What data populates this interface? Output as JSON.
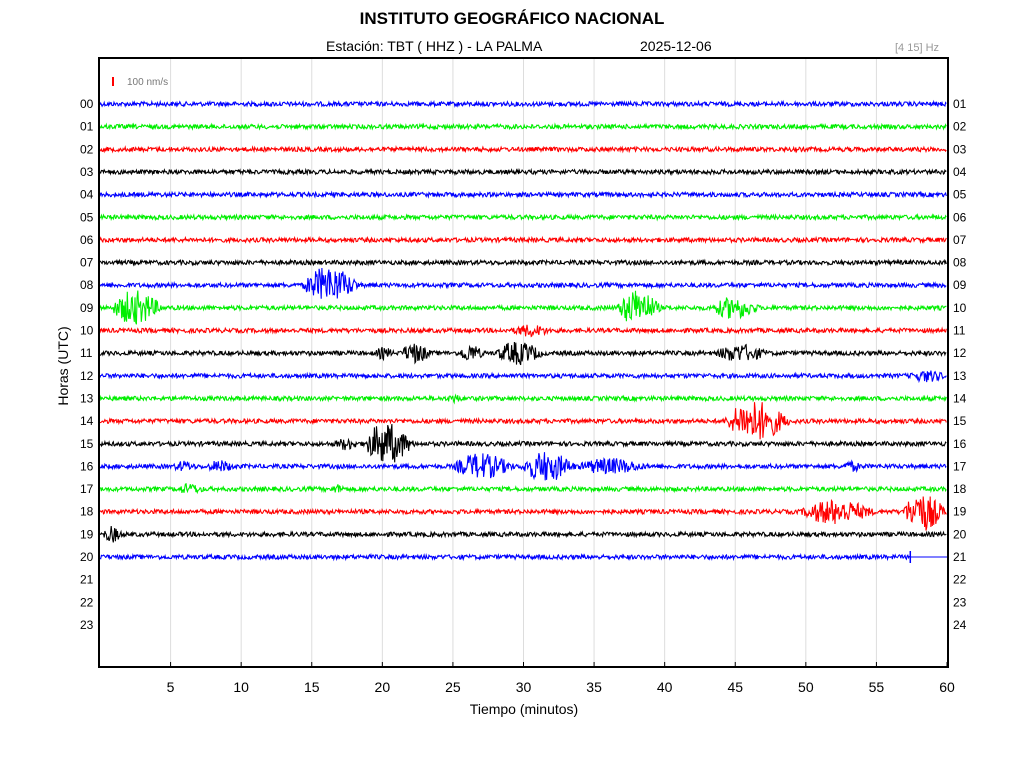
{
  "header": {
    "title": "INSTITUTO GEOGRÁFICO NACIONAL",
    "station": "Estación:  TBT ( HHZ ) - LA PALMA",
    "date": "2025-12-06",
    "filter": "[4 15] Hz"
  },
  "colors": {
    "blue": "#0000ff",
    "green": "#00ee00",
    "red": "#ff0000",
    "black": "#000000",
    "grid": "#dddddd"
  },
  "chart_data": {
    "type": "line",
    "title": "INSTITUTO GEOGRÁFICO NACIONAL",
    "xlabel": "Tiempo (minutos)",
    "ylabel": "Horas (UTC)",
    "xlim": [
      0,
      60
    ],
    "x_ticks": [
      "5",
      "10",
      "15",
      "20",
      "25",
      "30",
      "35",
      "40",
      "45",
      "50",
      "55",
      "60"
    ],
    "y_ticks_left": [
      "00",
      "01",
      "02",
      "03",
      "04",
      "05",
      "06",
      "07",
      "08",
      "09",
      "10",
      "11",
      "12",
      "13",
      "14",
      "15",
      "16",
      "17",
      "18",
      "19",
      "20",
      "21",
      "22",
      "23"
    ],
    "y_ticks_right": [
      "01",
      "02",
      "03",
      "04",
      "05",
      "06",
      "07",
      "08",
      "09",
      "10",
      "11",
      "12",
      "13",
      "14",
      "15",
      "16",
      "17",
      "18",
      "19",
      "20",
      "21",
      "22",
      "23",
      "24"
    ],
    "scale_label": "100 nm/s",
    "grid": true,
    "traces": [
      {
        "hour": 0,
        "color": "blue",
        "end_min": 60,
        "events": []
      },
      {
        "hour": 1,
        "color": "green",
        "end_min": 60,
        "events": []
      },
      {
        "hour": 2,
        "color": "red",
        "end_min": 60,
        "events": []
      },
      {
        "hour": 3,
        "color": "black",
        "end_min": 60,
        "events": []
      },
      {
        "hour": 4,
        "color": "blue",
        "end_min": 60,
        "events": []
      },
      {
        "hour": 5,
        "color": "green",
        "end_min": 60,
        "events": []
      },
      {
        "hour": 6,
        "color": "red",
        "end_min": 60,
        "events": []
      },
      {
        "hour": 7,
        "color": "black",
        "end_min": 60,
        "events": []
      },
      {
        "hour": 8,
        "color": "blue",
        "end_min": 60,
        "events": [
          {
            "start": 14.3,
            "end": 18.5,
            "amp": 2.3
          }
        ]
      },
      {
        "hour": 9,
        "color": "green",
        "end_min": 60,
        "events": [
          {
            "start": 0.8,
            "end": 4.5,
            "amp": 2.2
          },
          {
            "start": 36.6,
            "end": 39.8,
            "amp": 2.3
          },
          {
            "start": 43.3,
            "end": 46.8,
            "amp": 1.3
          }
        ]
      },
      {
        "hour": 10,
        "color": "red",
        "end_min": 60,
        "events": [
          {
            "start": 29.2,
            "end": 32.0,
            "amp": 0.6
          }
        ]
      },
      {
        "hour": 11,
        "color": "black",
        "end_min": 60,
        "events": [
          {
            "start": 19.5,
            "end": 20.8,
            "amp": 0.6
          },
          {
            "start": 21.3,
            "end": 23.5,
            "amp": 1.2
          },
          {
            "start": 25.4,
            "end": 27.2,
            "amp": 1.0
          },
          {
            "start": 28.0,
            "end": 31.5,
            "amp": 1.4
          },
          {
            "start": 43.6,
            "end": 47.4,
            "amp": 1.0
          }
        ]
      },
      {
        "hour": 12,
        "color": "blue",
        "end_min": 60,
        "events": [
          {
            "start": 57.4,
            "end": 60.0,
            "amp": 0.6
          }
        ]
      },
      {
        "hour": 13,
        "color": "green",
        "end_min": 60,
        "events": [
          {
            "start": 24.6,
            "end": 25.6,
            "amp": 0.4
          }
        ]
      },
      {
        "hour": 14,
        "color": "red",
        "end_min": 60,
        "events": [
          {
            "start": 44.2,
            "end": 49.0,
            "amp": 2.6
          }
        ]
      },
      {
        "hour": 15,
        "color": "black",
        "end_min": 60,
        "events": [
          {
            "start": 16.6,
            "end": 18.4,
            "amp": 0.6
          },
          {
            "start": 18.6,
            "end": 22.3,
            "amp": 2.7
          }
        ]
      },
      {
        "hour": 16,
        "color": "blue",
        "end_min": 60,
        "events": [
          {
            "start": 5.2,
            "end": 6.8,
            "amp": 0.5
          },
          {
            "start": 7.6,
            "end": 9.6,
            "amp": 0.6
          },
          {
            "start": 25.0,
            "end": 29.4,
            "amp": 1.6
          },
          {
            "start": 29.8,
            "end": 33.8,
            "amp": 1.9
          },
          {
            "start": 33.8,
            "end": 38.8,
            "amp": 0.9
          },
          {
            "start": 52.6,
            "end": 54.0,
            "amp": 0.5
          }
        ]
      },
      {
        "hour": 17,
        "color": "green",
        "end_min": 60,
        "events": [
          {
            "start": 5.4,
            "end": 7.4,
            "amp": 0.5
          },
          {
            "start": 16.4,
            "end": 17.4,
            "amp": 0.4
          }
        ]
      },
      {
        "hour": 18,
        "color": "red",
        "end_min": 60,
        "events": [
          {
            "start": 49.6,
            "end": 55.0,
            "amp": 1.5
          },
          {
            "start": 56.8,
            "end": 60.0,
            "amp": 2.5
          }
        ]
      },
      {
        "hour": 19,
        "color": "black",
        "end_min": 60,
        "events": [
          {
            "start": 0.2,
            "end": 1.6,
            "amp": 0.9
          }
        ]
      },
      {
        "hour": 20,
        "color": "blue",
        "end_min": 57.4,
        "events": []
      }
    ]
  }
}
